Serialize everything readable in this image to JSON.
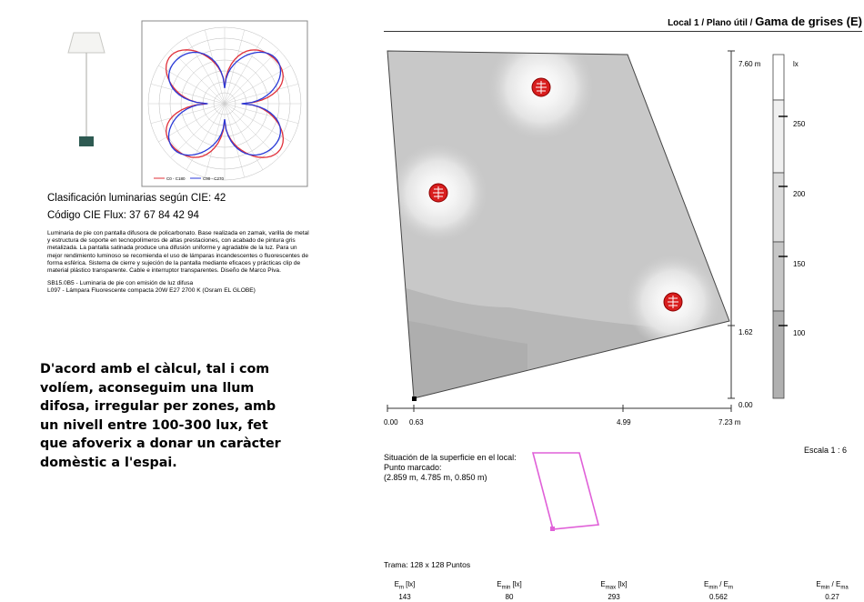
{
  "luminaire": {
    "classification": "Clasificación luminarias según CIE: 42",
    "cie_flux": "Código CIE Flux: 37  67  84  42  94",
    "description": "Luminaria de pie con pantalla difusora de policarbonato. Base realizada en zamak, varilla de metal y estructura de soporte en tecnopolímeros de altas prestaciones, con acabado de pintura gris metalizada. La pantalla satinada produce una difusión uniforme y agradable de la luz. Para un mejor rendimiento luminoso se recomienda el uso de lámparas incandescentes o fluorescentes de forma esférica. Sistema de cierre y sujeción de la pantalla mediante eficaces y prácticas clip de material plástico transparente. Cable e interruptor transparentes. Diseño de Marco Piva.",
    "reference": "SB15.0B5 - Luminaria de pie con emisión de luz difusa\nL097 - Lámpara Fluorescente compacta 20W E27 2700 K (Osram EL GLOBE)"
  },
  "conclusion": "D'acord amb el càlcul, tal i com volíem, aconseguim una llum difosa, irregular per zones, amb un nivell entre 100-300 lux, fet que afoverix a donar un caràcter domèstic a l'espai.",
  "report": {
    "title_prefix": "Local 1 / Plano útil / ",
    "title_main": "Gama de grises (E)",
    "y_axis_labels": [
      "7.60 m",
      "1.62",
      "0.00"
    ],
    "x_axis_labels": [
      "0.00",
      "0.63",
      "4.99",
      "7.23 m"
    ],
    "legend_unit": "lx",
    "legend_ticks": [
      "250",
      "200",
      "150",
      "100"
    ],
    "scale": "Escala 1 : 6",
    "situation": "Situación de la superficie en el local:\nPunto marcado:\n(2.859 m, 4.785 m, 0.850 m)",
    "grid": "Trama: 128 x 128 Puntos",
    "stats": [
      {
        "label": "E",
        "sub": "m",
        "unit": " [lx]",
        "value": "143"
      },
      {
        "label": "E",
        "sub": "min",
        "unit": " [lx]",
        "value": "80"
      },
      {
        "label": "E",
        "sub": "max",
        "unit": " [lx]",
        "value": "293"
      },
      {
        "label": "E",
        "sub": "min",
        "unit": " / E",
        "sub2": "m",
        "value": "0.562"
      },
      {
        "label": "E",
        "sub": "min",
        "unit": " / E",
        "sub2": "ma",
        "value": "0.27"
      }
    ]
  },
  "polar_legend": [
    "C0 - C180",
    "C90 - C270"
  ],
  "colors": {
    "lamp_red": "#d81e1e",
    "outline_pink": "#e060d8",
    "polar_red": "#e0303a",
    "polar_blue": "#2a3ad8"
  }
}
